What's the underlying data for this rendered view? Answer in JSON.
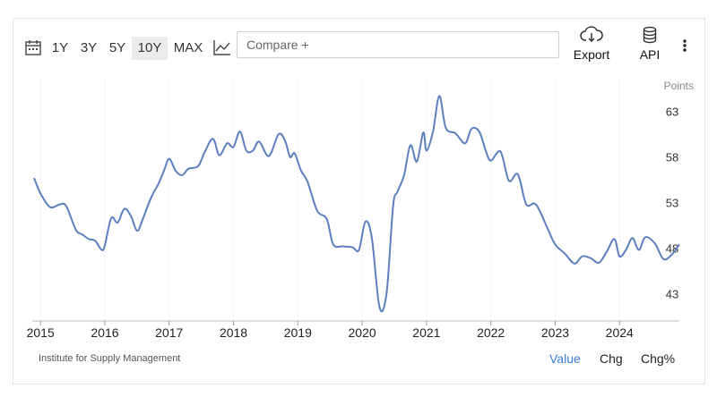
{
  "toolbar": {
    "ranges": [
      "1Y",
      "3Y",
      "5Y",
      "10Y",
      "MAX"
    ],
    "active_range": "10Y",
    "compare_placeholder": "Compare +",
    "export_label": "Export",
    "api_label": "API"
  },
  "footer": {
    "source": "Institute for Supply Management",
    "modes": [
      "Value",
      "Chg",
      "Chg%"
    ],
    "active_mode": "Value"
  },
  "chart_data": {
    "type": "line",
    "unit_label": "Points",
    "ylim": [
      40,
      66.5
    ],
    "yticks": [
      43,
      48,
      53,
      58,
      63
    ],
    "xlim": [
      2014.9,
      2024.93
    ],
    "xticks": [
      "2015",
      "2016",
      "2017",
      "2018",
      "2019",
      "2020",
      "2021",
      "2022",
      "2023",
      "2024"
    ],
    "line_color": "#5b7fbf",
    "grid": "dotted vertical",
    "series": [
      {
        "x": [
          2014.9,
          2015.0,
          2015.15,
          2015.3,
          2015.4,
          2015.55,
          2015.65,
          2015.75,
          2015.85,
          2015.95,
          2016.0,
          2016.1,
          2016.2,
          2016.3,
          2016.4,
          2016.5,
          2016.58,
          2016.67,
          2016.75,
          2016.83,
          2016.92,
          2017.0,
          2017.1,
          2017.2,
          2017.3,
          2017.45,
          2017.55,
          2017.68,
          2017.78,
          2017.9,
          2018.0,
          2018.1,
          2018.2,
          2018.3,
          2018.4,
          2018.55,
          2018.7,
          2018.8,
          2018.88,
          2018.95,
          2019.05,
          2019.15,
          2019.3,
          2019.45,
          2019.55,
          2019.7,
          2019.85,
          2019.95,
          2020.05,
          2020.15,
          2020.27,
          2020.38,
          2020.48,
          2020.55,
          2020.65,
          2020.75,
          2020.85,
          2020.95,
          2021.0,
          2021.1,
          2021.2,
          2021.3,
          2021.45,
          2021.6,
          2021.7,
          2021.82,
          2021.92,
          2022.0,
          2022.15,
          2022.28,
          2022.42,
          2022.55,
          2022.7,
          2022.88,
          2023.0,
          2023.15,
          2023.3,
          2023.42,
          2023.55,
          2023.68,
          2023.8,
          2023.92,
          2024.0,
          2024.1,
          2024.2,
          2024.3,
          2024.4,
          2024.55,
          2024.68,
          2024.8,
          2024.93
        ],
        "y": [
          55.7,
          54.0,
          52.5,
          52.8,
          52.6,
          50.0,
          49.5,
          49.0,
          48.8,
          47.8,
          48.3,
          51.3,
          50.8,
          52.3,
          51.6,
          49.9,
          51.0,
          52.7,
          54.0,
          55.0,
          56.5,
          57.8,
          56.5,
          56.0,
          56.7,
          57.0,
          58.5,
          60.0,
          58.2,
          59.5,
          59.1,
          60.8,
          58.7,
          58.7,
          59.7,
          58.1,
          60.5,
          59.8,
          58.0,
          58.4,
          56.5,
          55.3,
          52.1,
          51.2,
          48.4,
          48.2,
          48.1,
          47.8,
          50.9,
          49.1,
          41.5,
          43.1,
          52.6,
          54.2,
          56.0,
          59.3,
          57.5,
          60.7,
          58.7,
          60.8,
          64.7,
          61.2,
          60.6,
          59.5,
          61.1,
          60.8,
          58.7,
          57.6,
          58.6,
          55.4,
          56.1,
          52.8,
          52.8,
          50.2,
          48.4,
          47.4,
          46.3,
          47.1,
          46.9,
          46.4,
          47.6,
          49.0,
          47.1,
          47.8,
          49.1,
          47.8,
          49.2,
          48.5,
          46.8,
          47.2,
          48.4
        ]
      }
    ]
  }
}
